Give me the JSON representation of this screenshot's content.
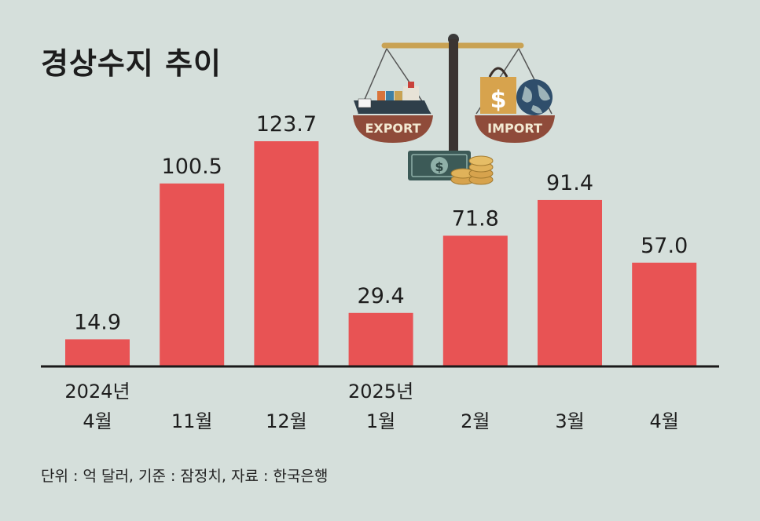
{
  "title": "경상수지 추이",
  "footnote": "단위 : 억 달러, 기준 : 잠정치, 자료 : 한국은행",
  "illustration": {
    "export_label": "EXPORT",
    "import_label": "IMPORT"
  },
  "colors": {
    "bar": "#e85354",
    "background": "#d5dfdb",
    "axis": "#1a1a1a"
  },
  "chart_data": {
    "type": "bar",
    "categories": [
      [
        "2024년",
        "4월"
      ],
      [
        "11월"
      ],
      [
        "12월"
      ],
      [
        "2025년",
        "1월"
      ],
      [
        "2월"
      ],
      [
        "3월"
      ],
      [
        "4월"
      ]
    ],
    "values": [
      14.9,
      100.5,
      123.7,
      29.4,
      71.8,
      91.4,
      57.0
    ],
    "value_labels": [
      "14.9",
      "100.5",
      "123.7",
      "29.4",
      "71.8",
      "91.4",
      "57.0"
    ],
    "title": "경상수지 추이",
    "unit": "억 달러",
    "ylim": [
      0,
      123.7
    ],
    "grid": false,
    "legend": "none"
  }
}
